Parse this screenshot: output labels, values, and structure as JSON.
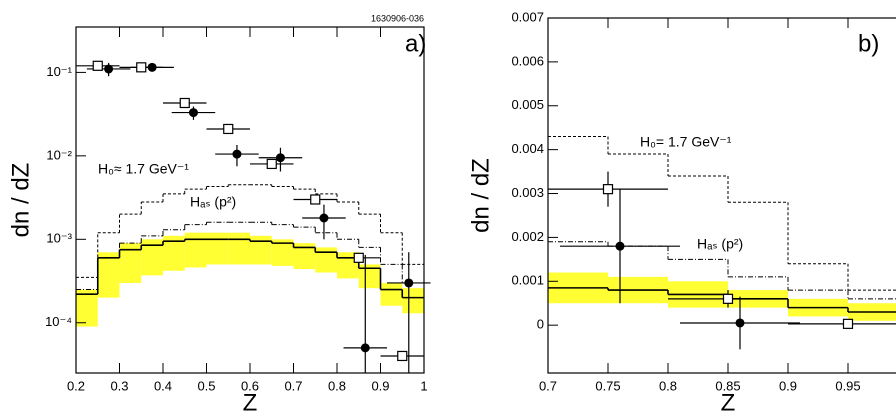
{
  "chart_data": [
    {
      "type": "scatter",
      "code": "1630906-036",
      "panel_label": "a)",
      "xlabel": "Z",
      "ylabel": "dn / dZ",
      "xlim": [
        0.2,
        1.0
      ],
      "ylim": [
        2.5e-05,
        0.35
      ],
      "log_y": true,
      "xticks": [
        0.2,
        0.3,
        0.4,
        0.5,
        0.6,
        0.7,
        0.8,
        0.9,
        1
      ],
      "yticks": [
        {
          "value": 0.0001,
          "label": "10⁻⁴"
        },
        {
          "value": 0.001,
          "label": "10⁻³"
        },
        {
          "value": 0.01,
          "label": "10⁻²"
        },
        {
          "value": 0.1,
          "label": "10⁻¹"
        }
      ],
      "annotations": [
        "H₀≈ 1.7 GeV⁻¹",
        "Hₐₛ (p²)"
      ],
      "bins": [
        0.2,
        0.25,
        0.3,
        0.35,
        0.4,
        0.45,
        0.5,
        0.55,
        0.6,
        0.65,
        0.7,
        0.75,
        0.8,
        0.85,
        0.9,
        0.95,
        1.0
      ],
      "band": {
        "color": "#ffff33",
        "low": [
          9e-05,
          0.0002,
          0.0003,
          0.00037,
          0.00042,
          0.00046,
          0.0005,
          0.0005,
          0.0005,
          0.00048,
          0.00044,
          0.0004,
          0.00034,
          0.00026,
          0.00016,
          0.00013
        ],
        "high": [
          0.00025,
          0.0007,
          0.0009,
          0.001,
          0.0011,
          0.0012,
          0.0012,
          0.0012,
          0.0011,
          0.001,
          0.0009,
          0.0008,
          0.0007,
          0.0005,
          0.0003,
          0.00026
        ]
      },
      "steps": [
        {
          "style": "dashed",
          "values": [
            0.00035,
            0.0012,
            0.002,
            0.0028,
            0.0035,
            0.004,
            0.0043,
            0.0045,
            0.0045,
            0.0043,
            0.004,
            0.0035,
            0.0028,
            0.002,
            0.0012,
            0.0005
          ]
        },
        {
          "style": "dashdot",
          "values": [
            0.00025,
            0.0006,
            0.0009,
            0.0011,
            0.0013,
            0.0015,
            0.0016,
            0.0016,
            0.0016,
            0.0015,
            0.0014,
            0.0012,
            0.001,
            0.0008,
            0.0005,
            0.0003
          ]
        },
        {
          "style": "solid",
          "values": [
            0.00022,
            0.0006,
            0.00075,
            0.00085,
            0.00095,
            0.001,
            0.001,
            0.001,
            0.00095,
            0.0009,
            0.0008,
            0.0007,
            0.0006,
            0.00045,
            0.00025,
            0.0002
          ]
        }
      ],
      "points": [
        {
          "marker": "circle",
          "x": [
            0.275,
            0.375,
            0.47,
            0.57,
            0.67,
            0.77,
            0.865,
            0.965
          ],
          "values": [
            0.11,
            0.115,
            0.033,
            0.0105,
            0.0095,
            0.0018,
            5e-05,
            0.0003
          ],
          "xerr": 0.05,
          "yerr": [
            0.02,
            0.01,
            0.006,
            0.003,
            0.003,
            0.0008,
            0.0006,
            0.0004
          ]
        },
        {
          "marker": "square",
          "x": [
            0.25,
            0.35,
            0.45,
            0.55,
            0.65,
            0.75,
            0.85,
            0.95
          ],
          "values": [
            0.12,
            0.115,
            0.043,
            0.021,
            0.008,
            0.003,
            0.0006,
            4e-05
          ],
          "xerr": 0.05
        }
      ]
    },
    {
      "type": "scatter",
      "panel_label": "b)",
      "xlabel": "Z",
      "ylabel": "dn / dZ",
      "xlim": [
        0.7,
        1.0
      ],
      "ylim": [
        -0.00109,
        0.007
      ],
      "log_y": false,
      "xticks": [
        0.7,
        0.75,
        0.8,
        0.85,
        0.9,
        0.95
      ],
      "yticks": [
        0,
        0.001,
        0.002,
        0.003,
        0.004,
        0.005,
        0.006,
        0.007
      ],
      "annotations": [
        "H₀= 1.7 GeV⁻¹",
        "Hₐₛ (p²)"
      ],
      "bins": [
        0.7,
        0.75,
        0.8,
        0.85,
        0.9,
        0.95,
        1.0
      ],
      "band": {
        "color": "#ffff33",
        "low": [
          0.0005,
          0.0005,
          0.0004,
          0.0004,
          0.0002,
          0.0001
        ],
        "high": [
          0.0012,
          0.0011,
          0.001,
          0.0008,
          0.0006,
          0.0005
        ]
      },
      "steps": [
        {
          "style": "dashed",
          "values": [
            0.0043,
            0.0039,
            0.0034,
            0.0028,
            0.0014,
            0.0008
          ]
        },
        {
          "style": "dashdot",
          "values": [
            0.0019,
            0.0018,
            0.0015,
            0.0011,
            0.0008,
            0.0006
          ]
        },
        {
          "style": "solid",
          "values": [
            0.00085,
            0.0008,
            0.0007,
            0.0006,
            0.0004,
            0.0003
          ]
        }
      ],
      "points": [
        {
          "marker": "circle",
          "x": [
            0.76,
            0.86
          ],
          "values": [
            0.0018,
            5e-05
          ],
          "xerr": 0.05,
          "yerr": [
            0.0013,
            0.0006
          ]
        },
        {
          "marker": "square",
          "x": [
            0.75,
            0.85,
            0.95
          ],
          "values": [
            0.0031,
            0.0006,
            3e-05
          ],
          "xerr": 0.05,
          "yerr": [
            0.0004,
            0.0002,
            0.0001
          ]
        }
      ]
    }
  ]
}
